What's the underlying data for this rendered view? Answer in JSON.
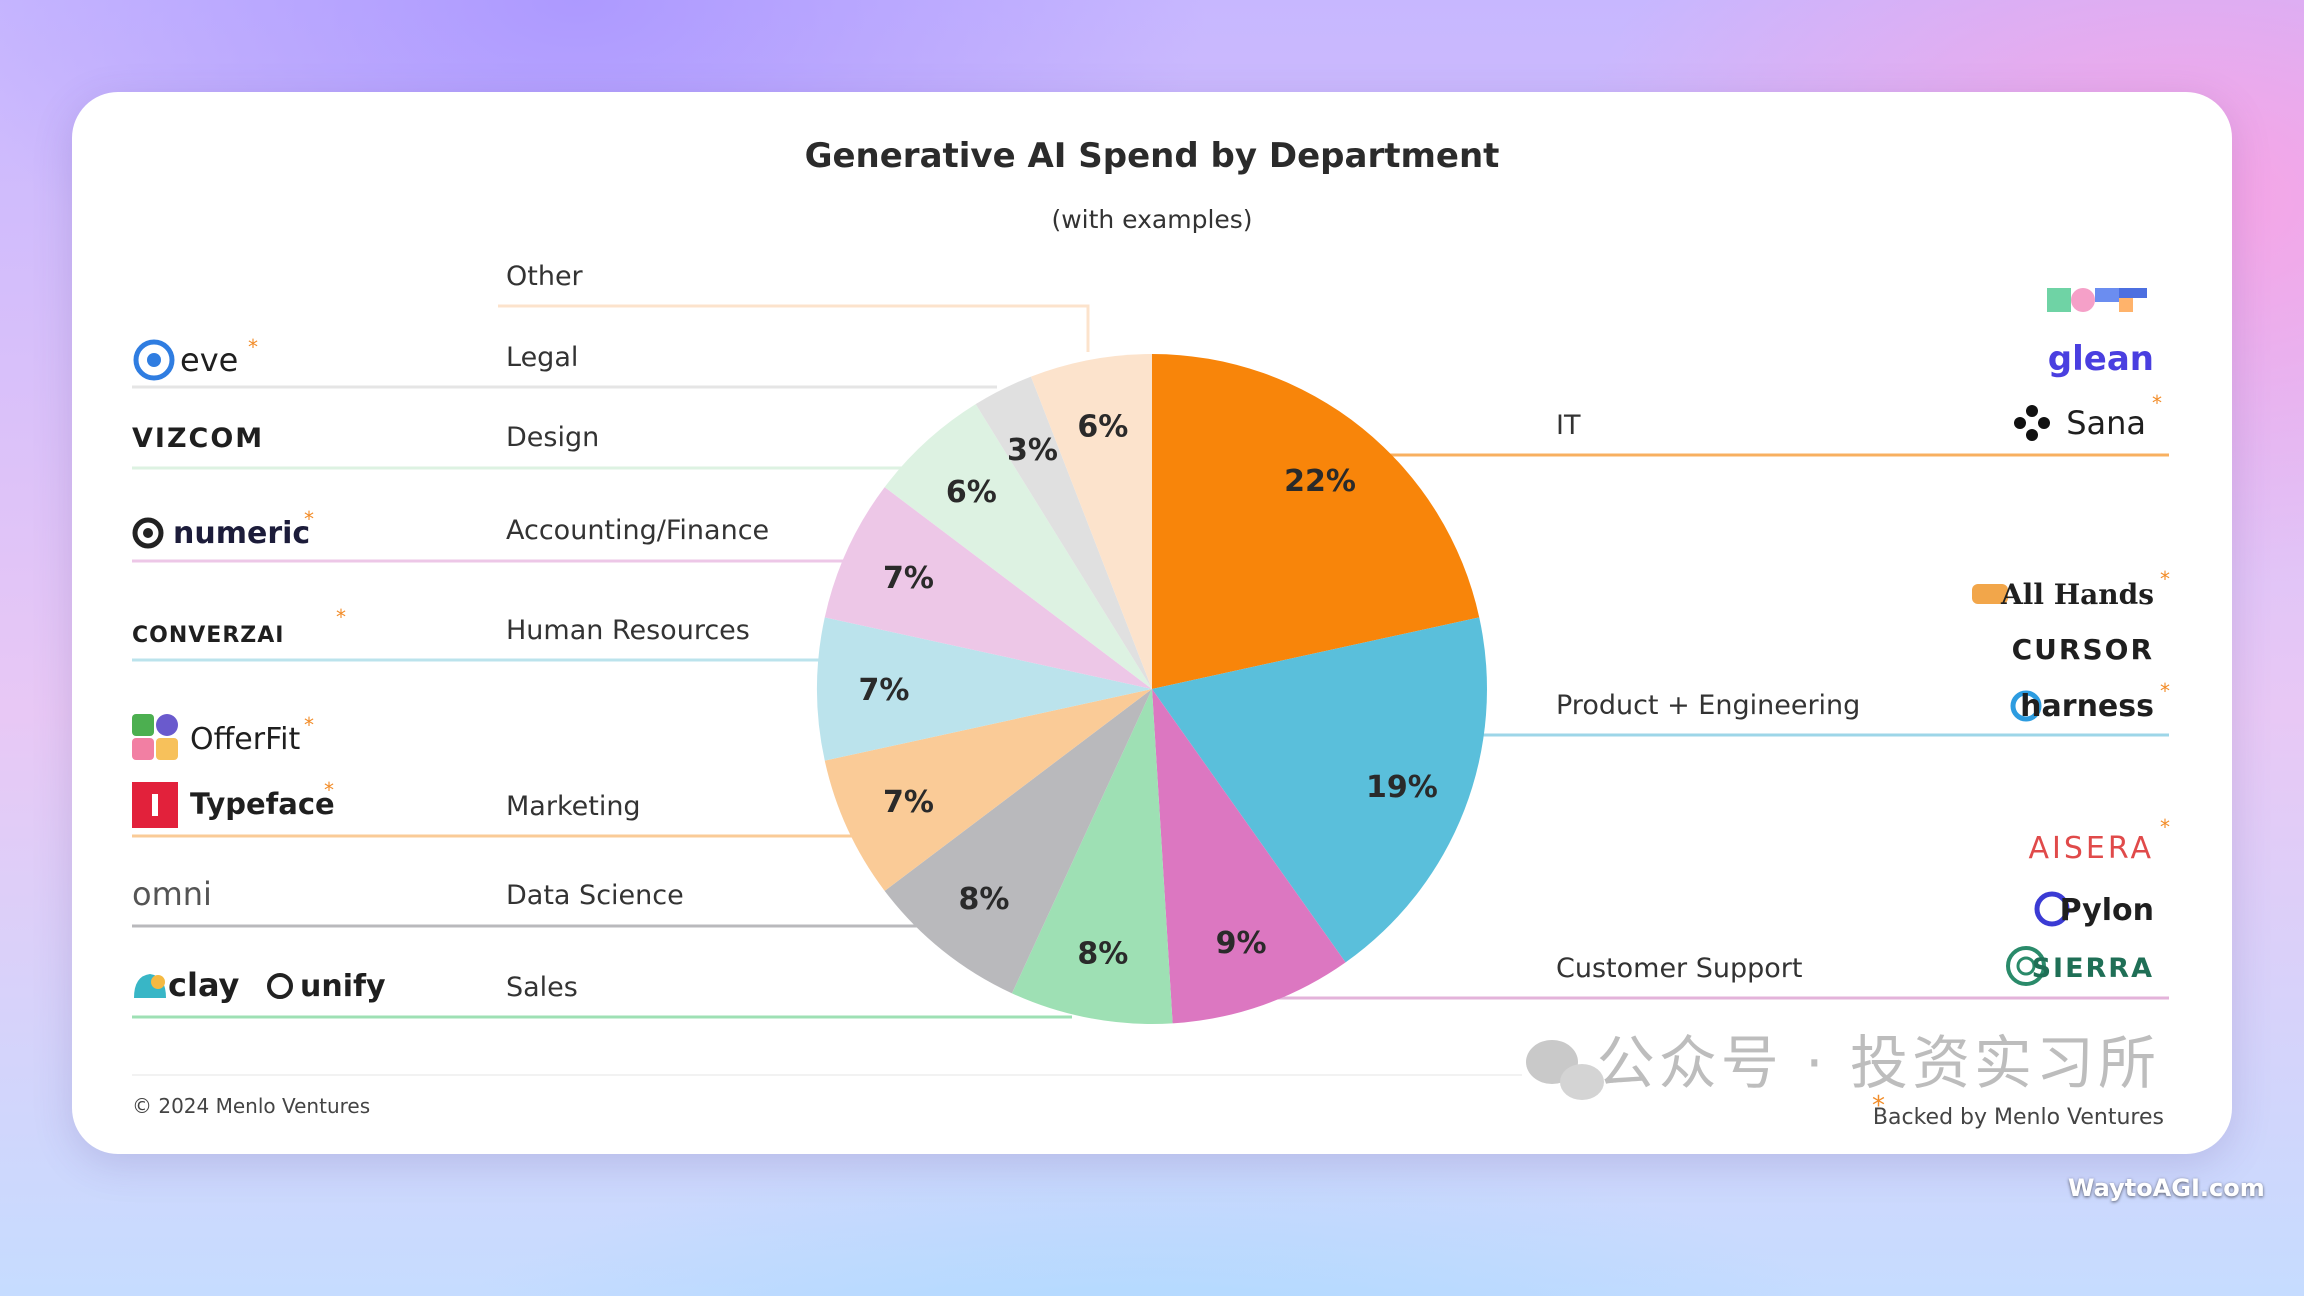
{
  "chart_data": {
    "type": "pie",
    "title": "Generative AI Spend by Department",
    "subtitle": "(with examples)",
    "slices": [
      {
        "label": "IT",
        "value": 22,
        "display": "22%",
        "color": "#F8850A",
        "examples": [
          "glean",
          "Sana"
        ]
      },
      {
        "label": "Product + Engineering",
        "value": 19,
        "display": "19%",
        "color": "#5ABFDB",
        "examples": [
          "All Hands",
          "CURSOR",
          "harness"
        ]
      },
      {
        "label": "Customer Support",
        "value": 9,
        "display": "9%",
        "color": "#DC77C1",
        "examples": [
          "AISERA",
          "Pylon",
          "SIERRA"
        ]
      },
      {
        "label": "Sales",
        "value": 8,
        "display": "8%",
        "color": "#9EE0B4",
        "examples": [
          "clay",
          "unify"
        ]
      },
      {
        "label": "Data Science",
        "value": 8,
        "display": "8%",
        "color": "#B9B9BC",
        "examples": [
          "omni"
        ]
      },
      {
        "label": "Marketing",
        "value": 7,
        "display": "7%",
        "color": "#FACB97",
        "examples": [
          "OfferFit",
          "Typeface"
        ]
      },
      {
        "label": "Human Resources",
        "value": 7,
        "display": "7%",
        "color": "#BBE3EC",
        "examples": [
          "CONVERZAI"
        ]
      },
      {
        "label": "Accounting/Finance",
        "value": 7,
        "display": "7%",
        "color": "#EDC7E7",
        "examples": [
          "numeric"
        ]
      },
      {
        "label": "Design",
        "value": 6,
        "display": "6%",
        "color": "#DDF2E2",
        "examples": [
          "VIZCOM"
        ]
      },
      {
        "label": "Legal",
        "value": 3,
        "display": "3%",
        "color": "#E0E0E0",
        "examples": [
          "eve"
        ]
      },
      {
        "label": "Other",
        "value": 6,
        "display": "6%",
        "color": "#FCE3CC",
        "examples": []
      }
    ]
  },
  "footer": {
    "copyright": "© 2024 Menlo Ventures",
    "backed_marker": "*",
    "backed_text": "Backed by Menlo Ventures"
  },
  "watermark": {
    "wechat": "公众号 · 投资实习所",
    "site": "WaytoAGI.com"
  }
}
